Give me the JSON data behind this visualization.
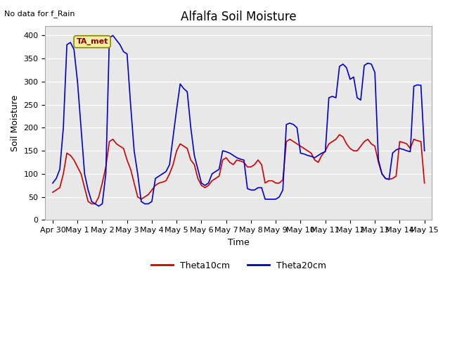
{
  "title": "Alfalfa Soil Moisture",
  "xlabel": "Time",
  "ylabel": "Soil Moisture",
  "top_left_text": "No data for f_Rain",
  "annotation_label": "TA_met",
  "ylim": [
    0,
    420
  ],
  "yticks": [
    0,
    50,
    100,
    150,
    200,
    250,
    300,
    350,
    400
  ],
  "fig_bg_color": "#ffffff",
  "plot_bg_color": "#e8e8e8",
  "line1_color": "#cc0000",
  "line2_color": "#0000cc",
  "legend_labels": [
    "Theta10cm",
    "Theta20cm"
  ],
  "x_tick_labels": [
    "Apr 30",
    "May 1",
    "May 2",
    "May 3",
    "May 4",
    "May 5",
    "May 6",
    "May 7",
    "May 8",
    "May 9",
    "May 10",
    "May 11",
    "May 12",
    "May 13",
    "May 14",
    "May 15"
  ],
  "theta10_values": [
    60,
    65,
    70,
    100,
    145,
    140,
    130,
    115,
    100,
    70,
    40,
    35,
    35,
    50,
    80,
    115,
    170,
    175,
    165,
    160,
    155,
    130,
    110,
    80,
    50,
    45,
    50,
    55,
    65,
    75,
    80,
    82,
    85,
    100,
    120,
    150,
    165,
    160,
    155,
    130,
    120,
    90,
    75,
    70,
    75,
    85,
    90,
    95,
    130,
    135,
    125,
    120,
    130,
    128,
    125,
    115,
    115,
    120,
    130,
    120,
    80,
    85,
    85,
    80,
    80,
    87,
    170,
    175,
    170,
    165,
    160,
    155,
    150,
    145,
    130,
    125,
    140,
    150,
    165,
    170,
    175,
    185,
    180,
    165,
    155,
    150,
    150,
    160,
    170,
    175,
    165,
    160,
    125,
    100,
    90,
    88,
    90,
    95,
    170,
    168,
    165,
    155,
    175,
    172,
    170,
    80
  ],
  "theta20_values": [
    80,
    90,
    110,
    200,
    380,
    385,
    370,
    300,
    200,
    100,
    65,
    40,
    35,
    30,
    35,
    100,
    395,
    400,
    390,
    380,
    365,
    360,
    250,
    150,
    100,
    40,
    35,
    35,
    40,
    90,
    95,
    100,
    105,
    120,
    180,
    240,
    295,
    285,
    278,
    200,
    140,
    110,
    80,
    75,
    80,
    100,
    105,
    110,
    150,
    148,
    145,
    140,
    135,
    132,
    130,
    68,
    65,
    65,
    70,
    70,
    45,
    45,
    45,
    45,
    50,
    65,
    207,
    210,
    207,
    200,
    145,
    143,
    140,
    138,
    135,
    140,
    145,
    148,
    265,
    268,
    265,
    333,
    338,
    330,
    305,
    310,
    265,
    260,
    335,
    340,
    338,
    320,
    130,
    100,
    90,
    88,
    145,
    152,
    155,
    153,
    150,
    148,
    290,
    293,
    292,
    150
  ],
  "title_fontsize": 12,
  "axis_label_fontsize": 9,
  "tick_fontsize": 8,
  "annotation_fontsize": 8,
  "linewidth": 1.2
}
